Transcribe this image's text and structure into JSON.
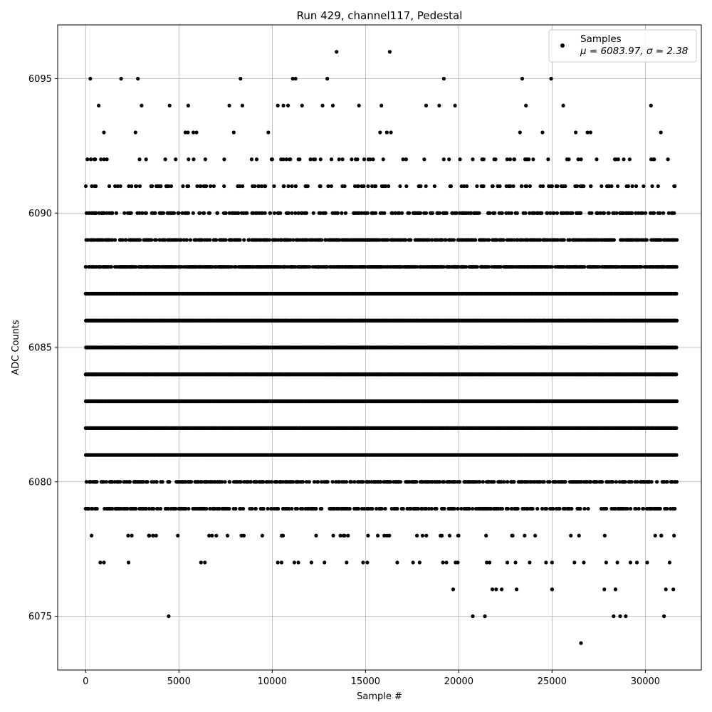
{
  "chart_data": {
    "type": "scatter",
    "title": "Run 429, channel117, Pedestal",
    "xlabel": "Sample #",
    "ylabel": "ADC Counts",
    "xlim": [
      -1500,
      33000
    ],
    "ylim": [
      6073,
      6097
    ],
    "xticks": [
      0,
      5000,
      10000,
      15000,
      20000,
      25000,
      30000
    ],
    "yticks": [
      6075,
      6080,
      6085,
      6090,
      6095
    ],
    "xtick_labels": [
      "0",
      "5000",
      "10000",
      "15000",
      "20000",
      "25000",
      "30000"
    ],
    "ytick_labels": [
      "6075",
      "6080",
      "6085",
      "6090",
      "6095"
    ],
    "grid": true,
    "legend_position": "top-right",
    "marker_color": "#000000",
    "series": [
      {
        "name": "Samples",
        "label_line2": "μ = 6083.97, σ = 2.38",
        "x_range": [
          0,
          31700
        ],
        "levels": [
          {
            "y": 6081,
            "density": 1.0
          },
          {
            "y": 6082,
            "density": 1.0
          },
          {
            "y": 6083,
            "density": 1.0
          },
          {
            "y": 6084,
            "density": 1.0
          },
          {
            "y": 6085,
            "density": 1.0
          },
          {
            "y": 6086,
            "density": 1.0
          },
          {
            "y": 6087,
            "density": 1.0
          },
          {
            "y": 6088,
            "density": 0.7
          },
          {
            "y": 6089,
            "density": 0.5
          },
          {
            "y": 6080,
            "density": 0.4
          },
          {
            "y": 6079,
            "density": 0.35
          },
          {
            "y": 6090,
            "density": 0.3
          },
          {
            "y": 6091,
            "density": 0.18
          },
          {
            "y": 6092,
            "density": 0.08
          },
          {
            "y": 6078,
            "density": 0.05
          },
          {
            "y": 6093,
            "density": 0.02
          },
          {
            "y": 6077,
            "density": 0.02
          }
        ],
        "points": [
          [
            250,
            6095
          ],
          [
            1900,
            6095
          ],
          [
            2800,
            6095
          ],
          [
            8300,
            6095
          ],
          [
            11100,
            6095
          ],
          [
            11250,
            6095
          ],
          [
            12950,
            6095
          ],
          [
            19200,
            6095
          ],
          [
            23400,
            6095
          ],
          [
            24950,
            6095
          ],
          [
            13450,
            6096
          ],
          [
            16300,
            6096
          ],
          [
            700,
            6094
          ],
          [
            3000,
            6094
          ],
          [
            4500,
            6094
          ],
          [
            5500,
            6094
          ],
          [
            7700,
            6094
          ],
          [
            8400,
            6094
          ],
          [
            10300,
            6094
          ],
          [
            10600,
            6094
          ],
          [
            10850,
            6094
          ],
          [
            11600,
            6094
          ],
          [
            12700,
            6094
          ],
          [
            13250,
            6094
          ],
          [
            14650,
            6094
          ],
          [
            15850,
            6094
          ],
          [
            18250,
            6094
          ],
          [
            18950,
            6094
          ],
          [
            19800,
            6094
          ],
          [
            23600,
            6094
          ],
          [
            25600,
            6094
          ],
          [
            30300,
            6094
          ],
          [
            2300,
            6077
          ],
          [
            10500,
            6077
          ],
          [
            11400,
            6077
          ],
          [
            12100,
            6077
          ],
          [
            12800,
            6077
          ],
          [
            15100,
            6077
          ],
          [
            16700,
            6077
          ],
          [
            17900,
            6077
          ],
          [
            19150,
            6077
          ],
          [
            19950,
            6077
          ],
          [
            21500,
            6077
          ],
          [
            22600,
            6077
          ],
          [
            23800,
            6077
          ],
          [
            25000,
            6077
          ],
          [
            26200,
            6077
          ],
          [
            26700,
            6077
          ],
          [
            27900,
            6077
          ],
          [
            28500,
            6077
          ],
          [
            29200,
            6077
          ],
          [
            30100,
            6077
          ],
          [
            31300,
            6077
          ],
          [
            19700,
            6076
          ],
          [
            21800,
            6076
          ],
          [
            22000,
            6076
          ],
          [
            22300,
            6076
          ],
          [
            23100,
            6076
          ],
          [
            25000,
            6076
          ],
          [
            27800,
            6076
          ],
          [
            28400,
            6076
          ],
          [
            31100,
            6076
          ],
          [
            31500,
            6076
          ],
          [
            4450,
            6075
          ],
          [
            20750,
            6075
          ],
          [
            21400,
            6075
          ],
          [
            28300,
            6075
          ],
          [
            28650,
            6075
          ],
          [
            28950,
            6075
          ],
          [
            31000,
            6075
          ],
          [
            26550,
            6074
          ]
        ]
      }
    ]
  }
}
